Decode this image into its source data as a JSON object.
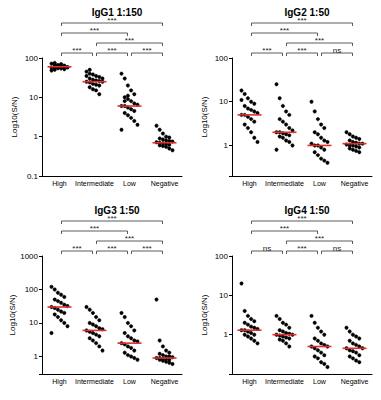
{
  "chart_data": [
    {
      "type": "scatter",
      "title": "IgG1 1:150",
      "y_label": "Log10(S/N)",
      "categories": [
        "High",
        "Intermediate",
        "Low",
        "Negative"
      ],
      "values": [
        [
          72,
          68,
          65,
          63,
          62,
          61,
          60,
          60,
          59,
          58,
          57,
          56,
          55,
          54,
          52,
          50,
          66,
          70,
          64,
          58,
          48,
          75
        ],
        [
          45,
          40,
          38,
          35,
          33,
          30,
          28,
          27,
          26,
          25,
          25,
          24,
          22,
          21,
          20,
          18,
          16,
          15,
          12,
          30,
          35,
          50
        ],
        [
          40,
          30,
          20,
          15,
          12,
          10,
          9,
          8,
          7,
          6.5,
          6,
          6,
          5.5,
          5,
          4.5,
          4,
          3.5,
          3,
          2.5,
          2,
          1.5,
          8,
          11
        ],
        [
          1.9,
          1.5,
          1.2,
          1,
          0.95,
          0.9,
          0.85,
          0.8,
          0.78,
          0.75,
          0.72,
          0.7,
          0.68,
          0.65,
          0.62,
          0.6,
          0.58,
          0.55,
          0.5,
          0.45
        ]
      ],
      "medians": {
        "values": [
          60,
          25,
          6,
          0.7
        ],
        "color": "#e0302b"
      },
      "comparisons": [
        {
          "from": "High",
          "to": "Intermediate",
          "label": "***"
        },
        {
          "from": "Intermediate",
          "to": "Low",
          "label": "***"
        },
        {
          "from": "Low",
          "to": "Negative",
          "label": "***"
        },
        {
          "from": "Intermediate",
          "to": "Negative",
          "label": "***"
        },
        {
          "from": "High",
          "to": "Low",
          "label": "***"
        },
        {
          "from": "High",
          "to": "Negative",
          "label": "***"
        }
      ],
      "color": "#000000",
      "marker": "circle",
      "log": "y",
      "grid": false,
      "ylim": [
        0.1,
        100
      ],
      "yticks": [
        0.1,
        1,
        10,
        100
      ]
    },
    {
      "type": "scatter",
      "title": "IgG2 1:50",
      "y_label": "Log10(S/N)",
      "categories": [
        "High",
        "Intermediate",
        "Low",
        "Negative"
      ],
      "values": [
        [
          18,
          15,
          12,
          10,
          9,
          8,
          7,
          6.5,
          6,
          5.5,
          5,
          5,
          4.5,
          4,
          3.5,
          3,
          2.5,
          2,
          1.5,
          1.2,
          11
        ],
        [
          25,
          12,
          8,
          6,
          5,
          4,
          3.5,
          3,
          2.5,
          2.2,
          2,
          2,
          1.9,
          1.8,
          1.7,
          1.6,
          1.5,
          1.3,
          1.2,
          1,
          0.8
        ],
        [
          10,
          6,
          4,
          3,
          2.5,
          2,
          1.8,
          1.5,
          1.3,
          1.2,
          1.1,
          1,
          1,
          0.9,
          0.8,
          0.7,
          0.6,
          0.5,
          0.45,
          0.4
        ],
        [
          2,
          1.8,
          1.6,
          1.5,
          1.4,
          1.3,
          1.2,
          1.15,
          1.1,
          1.1,
          1.05,
          1,
          1,
          0.95,
          0.9,
          0.85,
          0.8,
          0.75,
          0.7
        ]
      ],
      "medians": {
        "values": [
          5,
          2,
          1,
          1.1
        ],
        "color": "#e0302b"
      },
      "comparisons": [
        {
          "from": "High",
          "to": "Intermediate",
          "label": "***"
        },
        {
          "from": "Intermediate",
          "to": "Low",
          "label": "***"
        },
        {
          "from": "Low",
          "to": "Negative",
          "label": "ns"
        },
        {
          "from": "Intermediate",
          "to": "Negative",
          "label": "***"
        },
        {
          "from": "High",
          "to": "Low",
          "label": "***"
        },
        {
          "from": "High",
          "to": "Negative",
          "label": "***"
        }
      ],
      "color": "#000000",
      "marker": "circle",
      "log": "y",
      "grid": false,
      "ylim": [
        0.2,
        100
      ],
      "yticks": [
        1,
        10,
        100
      ]
    },
    {
      "type": "scatter",
      "title": "IgG3 1:50",
      "y_label": "Log10(S/N)",
      "categories": [
        "High",
        "Intermediate",
        "Low",
        "Negative"
      ],
      "values": [
        [
          120,
          100,
          80,
          70,
          60,
          50,
          45,
          40,
          35,
          32,
          30,
          28,
          25,
          22,
          20,
          18,
          15,
          12,
          10,
          8,
          5
        ],
        [
          30,
          25,
          20,
          15,
          12,
          10,
          9,
          8,
          7,
          6.5,
          6,
          5.5,
          5,
          4.5,
          4,
          3.5,
          3,
          2.5,
          2,
          1.5
        ],
        [
          20,
          15,
          10,
          8,
          6,
          5,
          4,
          3.5,
          3,
          2.8,
          2.5,
          2.3,
          2,
          1.8,
          1.5,
          1.3,
          1.1,
          1,
          0.9,
          0.8
        ],
        [
          50,
          3,
          2,
          1.5,
          1.3,
          1.2,
          1.1,
          1,
          1,
          0.95,
          0.9,
          0.9,
          0.85,
          0.85,
          0.8,
          0.8,
          0.75,
          0.7,
          0.65,
          0.6
        ]
      ],
      "medians": {
        "values": [
          30,
          6,
          2.5,
          0.9
        ],
        "color": "#e0302b"
      },
      "comparisons": [
        {
          "from": "High",
          "to": "Intermediate",
          "label": "***"
        },
        {
          "from": "Intermediate",
          "to": "Low",
          "label": "***"
        },
        {
          "from": "Low",
          "to": "Negative",
          "label": "***"
        },
        {
          "from": "Intermediate",
          "to": "Negative",
          "label": "***"
        },
        {
          "from": "High",
          "to": "Low",
          "label": "***"
        },
        {
          "from": "High",
          "to": "Negative",
          "label": "***"
        }
      ],
      "color": "#000000",
      "marker": "circle",
      "log": "y",
      "grid": false,
      "ylim": [
        0.3,
        1000
      ],
      "yticks": [
        1,
        10,
        100,
        1000
      ]
    },
    {
      "type": "scatter",
      "title": "IgG4 1:50",
      "y_label": "Log10(S/N)",
      "categories": [
        "High",
        "Intermediate",
        "Low",
        "Negative"
      ],
      "values": [
        [
          20,
          4,
          3,
          2.5,
          2.2,
          2,
          1.8,
          1.6,
          1.5,
          1.4,
          1.3,
          1.3,
          1.2,
          1.1,
          1,
          1,
          0.9,
          0.8,
          0.7,
          0.6
        ],
        [
          3,
          2.5,
          2,
          1.8,
          1.5,
          1.3,
          1.2,
          1.1,
          1.05,
          1,
          1,
          0.95,
          0.9,
          0.85,
          0.8,
          0.75,
          0.7,
          0.6,
          0.5
        ],
        [
          3,
          2,
          1.5,
          1.2,
          1,
          0.8,
          0.7,
          0.6,
          0.55,
          0.5,
          0.5,
          0.45,
          0.4,
          0.35,
          0.3,
          0.28,
          0.25,
          0.2,
          0.18,
          0.15
        ],
        [
          1.5,
          1.2,
          1,
          0.9,
          0.8,
          0.7,
          0.6,
          0.55,
          0.5,
          0.45,
          0.45,
          0.4,
          0.38,
          0.35,
          0.3,
          0.28,
          0.25,
          0.22,
          0.2
        ]
      ],
      "medians": {
        "values": [
          1.3,
          1,
          0.5,
          0.45
        ],
        "color": "#e0302b"
      },
      "comparisons": [
        {
          "from": "High",
          "to": "Intermediate",
          "label": "ns"
        },
        {
          "from": "Intermediate",
          "to": "Low",
          "label": "***"
        },
        {
          "from": "Low",
          "to": "Negative",
          "label": "ns"
        },
        {
          "from": "Intermediate",
          "to": "Negative",
          "label": "***"
        },
        {
          "from": "High",
          "to": "Low",
          "label": "***"
        },
        {
          "from": "High",
          "to": "Negative",
          "label": "***"
        }
      ],
      "color": "#000000",
      "marker": "circle",
      "log": "y",
      "grid": false,
      "ylim": [
        0.1,
        100
      ],
      "yticks": [
        1,
        10,
        100
      ]
    }
  ]
}
